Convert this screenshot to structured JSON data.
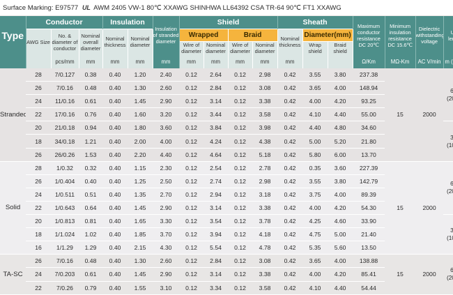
{
  "marking": {
    "prefix": "Surface Marking: E97577",
    "ul_mark": "UL",
    "text": "AWM 2405 VW-1 80℃ XXAWG SHINHWA LL64392 CSA TR-64 90℃ FT1 XXAWG"
  },
  "header": {
    "type": "Type",
    "conductor": "Conductor",
    "insulation": "Insulation",
    "insulation_of_stranded_diameter": "Insulation of stranded diameter",
    "shield": "Shield",
    "sheath": "Sheath",
    "max_conductor_resistance": "Maximum conductor resistance DC 20℃",
    "min_insulation_resistance": "Minimum insulation resistance DC 15.6℃",
    "dielectric_voltage": "Dielectric withstanding voltage",
    "unit_length": "Unit length",
    "awg_size": "AWG Size",
    "no_diameter_of_conductor": "No. & diameter of conductor",
    "nominal_overall_diameter": "Nominal overall diameter",
    "nominal_thickness": "Nominal thickness",
    "nominal_diameter": "Nominal diameter",
    "wrapped": "Wrapped",
    "braid": "Braid",
    "wire_of_diameter": "Wire of diameter",
    "sheath_nominal_thickness": "Nominal thickness",
    "diameter_mm": "Diameter(mm)",
    "wrap_shield": "Wrap shield",
    "braid_shield": "Braid shield"
  },
  "units": {
    "pcs_mm": "pcs/mm",
    "mm": "mm",
    "ohm_km": "Ω/Km",
    "mohm_km": "MΩ-Km",
    "ac_v_min": "AC V/min",
    "m_feet": "m (Feet)"
  },
  "groups": [
    {
      "type": "Stranded",
      "insulation_resistance": "15",
      "voltage": "2000",
      "length_a": "610 (2000)",
      "length_b": "305 (1000)",
      "rows": [
        [
          "28",
          "7/0.127",
          "0.38",
          "0.40",
          "1.20",
          "2.40",
          "0.12",
          "2.64",
          "0.12",
          "2.98",
          "0.42",
          "3.55",
          "3.80",
          "237.38"
        ],
        [
          "26",
          "7/0.16",
          "0.48",
          "0.40",
          "1.30",
          "2.60",
          "0.12",
          "2.84",
          "0.12",
          "3.08",
          "0.42",
          "3.65",
          "4.00",
          "148.94"
        ],
        [
          "24",
          "11/0.16",
          "0.61",
          "0.40",
          "1.45",
          "2.90",
          "0.12",
          "3.14",
          "0.12",
          "3.38",
          "0.42",
          "4.00",
          "4.20",
          "93.25"
        ],
        [
          "22",
          "17/0.16",
          "0.76",
          "0.40",
          "1.60",
          "3.20",
          "0.12",
          "3.44",
          "0.12",
          "3.58",
          "0.42",
          "4.10",
          "4.40",
          "55.00"
        ],
        [
          "20",
          "21/0.18",
          "0.94",
          "0.40",
          "1.80",
          "3.60",
          "0.12",
          "3.84",
          "0.12",
          "3.98",
          "0.42",
          "4.40",
          "4.80",
          "34.60"
        ],
        [
          "18",
          "34/0.18",
          "1.21",
          "0.40",
          "2.00",
          "4.00",
          "0.12",
          "4.24",
          "0.12",
          "4.38",
          "0.42",
          "5.00",
          "5.20",
          "21.80"
        ],
        [
          "26",
          "26/0.26",
          "1.53",
          "0.40",
          "2.20",
          "4.40",
          "0.12",
          "4.64",
          "0.12",
          "5.18",
          "0.42",
          "5.80",
          "6.00",
          "13.70"
        ]
      ]
    },
    {
      "type": "Solid",
      "insulation_resistance": "15",
      "voltage": "2000",
      "length_a": "610 (2000)",
      "length_b": "305 (1000)",
      "rows": [
        [
          "28",
          "1/0.32",
          "0.32",
          "0.40",
          "1.15",
          "2.30",
          "0.12",
          "2.54",
          "0.12",
          "2.78",
          "0.42",
          "0.35",
          "3.60",
          "227.39"
        ],
        [
          "26",
          "1/0.404",
          "0.40",
          "0.40",
          "1.25",
          "2.50",
          "0.12",
          "2.74",
          "0.12",
          "2.98",
          "0.42",
          "3.55",
          "3.80",
          "142.79"
        ],
        [
          "24",
          "1/0.511",
          "0.51",
          "0.40",
          "1.35",
          "2.70",
          "0.12",
          "2.94",
          "0.12",
          "3.18",
          "0.42",
          "3.75",
          "4.00",
          "89.39"
        ],
        [
          "22",
          "1/0.643",
          "0.64",
          "0.40",
          "1.45",
          "2.90",
          "0.12",
          "3.14",
          "0.12",
          "3.38",
          "0.42",
          "4.00",
          "4.20",
          "54.30"
        ],
        [
          "20",
          "1/0.813",
          "0.81",
          "0.40",
          "1.65",
          "3.30",
          "0.12",
          "3.54",
          "0.12",
          "3.78",
          "0.42",
          "4.25",
          "4.60",
          "33.90"
        ],
        [
          "18",
          "1/1.024",
          "1.02",
          "0.40",
          "1.85",
          "3.70",
          "0.12",
          "3.94",
          "0.12",
          "4.18",
          "0.42",
          "4.75",
          "5.00",
          "21.40"
        ],
        [
          "16",
          "1/1.29",
          "1.29",
          "0.40",
          "2.15",
          "4.30",
          "0.12",
          "5.54",
          "0.12",
          "4.78",
          "0.42",
          "5.35",
          "5.60",
          "13.50"
        ]
      ]
    },
    {
      "type": "TA-SC",
      "insulation_resistance": "15",
      "voltage": "2000",
      "length_a": "610 (2000)",
      "rows": [
        [
          "26",
          "7/0.16",
          "0.48",
          "0.40",
          "1.30",
          "2.60",
          "0.12",
          "2.84",
          "0.12",
          "3.08",
          "0.42",
          "3.65",
          "4.00",
          "138.88"
        ],
        [
          "24",
          "7/0.203",
          "0.61",
          "0.40",
          "1.45",
          "2.90",
          "0.12",
          "3.14",
          "0.12",
          "3.38",
          "0.42",
          "4.00",
          "4.20",
          "85.41"
        ],
        [
          "22",
          "7/0.26",
          "0.79",
          "0.40",
          "1.55",
          "3.10",
          "0.12",
          "3.34",
          "0.12",
          "3.58",
          "0.42",
          "4.10",
          "4.40",
          "54.44"
        ]
      ]
    }
  ]
}
